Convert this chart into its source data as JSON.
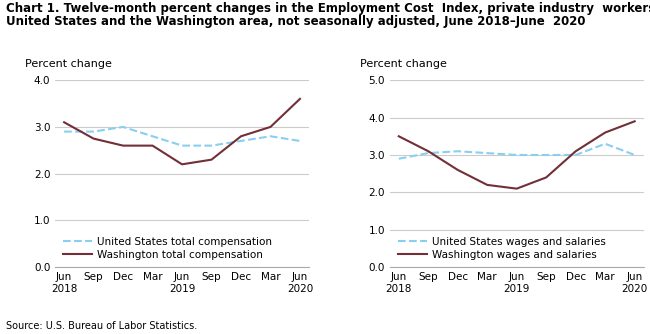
{
  "title_line1": "Chart 1. Twelve-month percent changes in the Employment Cost  Index, private industry  workers,",
  "title_line2": "United States and the Washington area, not seasonally adjusted, June 2018–June  2020",
  "source": "Source: U.S. Bureau of Labor Statistics.",
  "left_chart": {
    "ylabel": "Percent change",
    "ylim": [
      0.0,
      4.0
    ],
    "yticks": [
      0.0,
      1.0,
      2.0,
      3.0,
      4.0
    ],
    "x_labels": [
      "Jun\n2018",
      "Sep",
      "Dec",
      "Mar",
      "Jun\n2019",
      "Sep",
      "Dec",
      "Mar",
      "Jun\n2020"
    ],
    "us_total_comp": [
      2.9,
      2.9,
      3.0,
      2.8,
      2.6,
      2.6,
      2.7,
      2.8,
      2.7
    ],
    "wa_total_comp": [
      3.1,
      2.75,
      2.6,
      2.6,
      2.2,
      2.3,
      2.8,
      3.0,
      3.6
    ],
    "us_label": "United States total compensation",
    "wa_label": "Washington total compensation"
  },
  "right_chart": {
    "ylabel": "Percent change",
    "ylim": [
      0.0,
      5.0
    ],
    "yticks": [
      0.0,
      1.0,
      2.0,
      3.0,
      4.0,
      5.0
    ],
    "x_labels": [
      "Jun\n2018",
      "Sep",
      "Dec",
      "Mar",
      "Jun\n2019",
      "Sep",
      "Dec",
      "Mar",
      "Jun\n2020"
    ],
    "us_wages": [
      2.9,
      3.05,
      3.1,
      3.05,
      3.0,
      3.0,
      3.0,
      3.3,
      3.0
    ],
    "wa_wages": [
      3.5,
      3.1,
      2.6,
      2.2,
      2.1,
      2.4,
      3.1,
      3.6,
      3.9
    ],
    "us_label": "United States wages and salaries",
    "wa_label": "Washington wages and salaries"
  },
  "us_color": "#89CFF0",
  "wa_color": "#722F37",
  "us_linestyle": "--",
  "wa_linestyle": "-",
  "linewidth": 1.5,
  "grid_color": "#cccccc",
  "bg_color": "#ffffff",
  "title_fontsize": 8.5,
  "ylabel_fontsize": 8,
  "tick_fontsize": 7.5,
  "legend_fontsize": 7.5,
  "source_fontsize": 7
}
